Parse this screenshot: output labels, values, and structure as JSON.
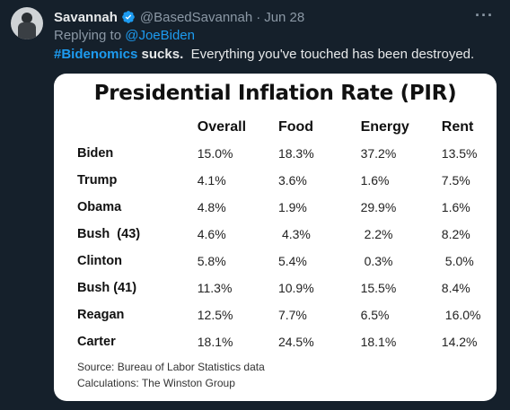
{
  "tweet": {
    "author_name": "Savannah",
    "handle": "@BasedSavannah",
    "separator": "·",
    "time": "Jun 28",
    "replying_prefix": "Replying to",
    "replying_to": "@JoeBiden",
    "hashtag": "#Bidenomics",
    "text_bold": "sucks.",
    "text_rest": "Everything you've touched has been destroyed.",
    "more_icon": "more-horizontal-icon",
    "verified_icon": "verified-badge-icon",
    "accent_color": "#1d9bf0"
  },
  "card": {
    "title": "Presidential Inflation Rate (PIR)",
    "headers": [
      "",
      "Overall",
      "Food",
      "Energy",
      "Rent"
    ],
    "rows": [
      [
        "Biden",
        "15.0%",
        "18.3%",
        "37.2%",
        "13.5%"
      ],
      [
        "Trump",
        "4.1%",
        "3.6%",
        "1.6%",
        "7.5%"
      ],
      [
        "Obama",
        "4.8%",
        "1.9%",
        "29.9%",
        "1.6%"
      ],
      [
        "Bush  (43)",
        "4.6%",
        "4.3%",
        "2.2%",
        "8.2%"
      ],
      [
        "Clinton",
        "5.8%",
        "5.4%",
        "0.3%",
        "5.0%"
      ],
      [
        "Bush (41)",
        "11.3%",
        "10.9%",
        "15.5%",
        "8.4%"
      ],
      [
        "Reagan",
        "12.5%",
        "7.7%",
        "6.5%",
        "16.0%"
      ],
      [
        "Carter",
        "18.1%",
        "24.5%",
        "18.1%",
        "14.2%"
      ]
    ],
    "source": "Source: Bureau of Labor Statistics data",
    "calculations": "Calculations: The Winston Group"
  }
}
